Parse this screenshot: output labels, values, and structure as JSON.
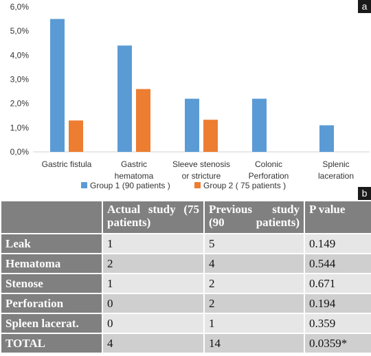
{
  "panel_a_label": "a",
  "panel_b_label": "b",
  "chart_data": {
    "type": "bar",
    "categories": [
      "Gastric fistula",
      "Gastric\nhematoma",
      "Sleeve stenosis\nor stricture",
      "Colonic\nPerforation",
      "Splenic\nlaceration"
    ],
    "series": [
      {
        "name": "Group 1 (90 patients )",
        "color": "#5b9bd5",
        "values": [
          5.5,
          4.4,
          2.2,
          2.2,
          1.1
        ]
      },
      {
        "name": "Group 2 ( 75 patients )",
        "color": "#ed7d31",
        "values": [
          1.3,
          2.6,
          1.33,
          0,
          0
        ]
      }
    ],
    "yticks": [
      "0,0%",
      "1,0%",
      "2,0%",
      "3,0%",
      "4,0%",
      "5,0%",
      "6,0%"
    ],
    "ylim": [
      0,
      6
    ],
    "legend_position": "bottom",
    "grid": false
  },
  "table": {
    "headers": [
      "",
      "Actual study (75 patients)",
      "Previous study (90 patients)",
      "P value"
    ],
    "rows": [
      {
        "label": "Leak",
        "actual": "1",
        "previous": "5",
        "p": "0.149"
      },
      {
        "label": "Hematoma",
        "actual": "2",
        "previous": "4",
        "p": "0.544"
      },
      {
        "label": "Stenose",
        "actual": "1",
        "previous": "2",
        "p": "0.671"
      },
      {
        "label": "Perforation",
        "actual": "0",
        "previous": "2",
        "p": "0.194"
      },
      {
        "label": "Spleen lacerat.",
        "actual": "0",
        "previous": "1",
        "p": "0.359"
      },
      {
        "label": "TOTAL",
        "actual": "4",
        "previous": "14",
        "p": "0.0359*"
      }
    ]
  }
}
